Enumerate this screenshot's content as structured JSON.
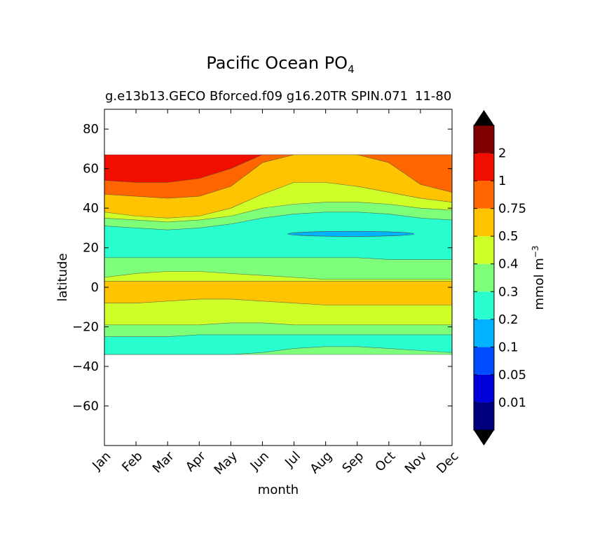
{
  "chart_data": {
    "type": "contour",
    "title_main": "Pacific Ocean PO",
    "title_sub": "4",
    "subtitle": "g.e13b13.GECO Bforced.f09 g16.20TR SPIN.071",
    "years": "11-80",
    "xlabel": "month",
    "ylabel": "latitude",
    "months": [
      "Jan",
      "Feb",
      "Mar",
      "Apr",
      "May",
      "Jun",
      "Jul",
      "Aug",
      "Sep",
      "Oct",
      "Nov",
      "Dec"
    ],
    "xlim": [
      0,
      11
    ],
    "ylim": [
      -80,
      90
    ],
    "yticks": [
      80,
      60,
      40,
      20,
      0,
      -20,
      -40,
      -60
    ],
    "ytick_labels": [
      "80",
      "60",
      "40",
      "20",
      "0",
      "−20",
      "−40",
      "−60"
    ],
    "data_lat_range": [
      -34,
      67
    ],
    "colorbar": {
      "label": "mmol m",
      "label_sup": "−3",
      "levels": [
        "0.01",
        "0.05",
        "0.1",
        "0.2",
        "0.3",
        "0.4",
        "0.5",
        "0.75",
        "1",
        "2"
      ],
      "colors": [
        "#00007f",
        "#0000d9",
        "#004dff",
        "#00b2ff",
        "#29ffce",
        "#7dff7a",
        "#ceff29",
        "#ffc400",
        "#ff6600",
        "#f00e00",
        "#7f0000"
      ]
    },
    "bands": [
      {
        "name": "band-red-top",
        "value": "1-2",
        "color": "#f00e00",
        "top": [
          67,
          67,
          67,
          67,
          67,
          67,
          67,
          67,
          67,
          67,
          67,
          67
        ],
        "bottom": [
          54,
          53,
          53,
          55,
          60,
          67,
          67,
          67,
          67,
          67,
          67,
          67
        ]
      },
      {
        "name": "band-orange-north",
        "value": "0.75-1",
        "color": "#ff6600",
        "top": [
          54,
          53,
          53,
          55,
          60,
          67,
          67,
          67,
          67,
          67,
          67,
          67
        ],
        "bottom": [
          47,
          46,
          45,
          46,
          51,
          63,
          67,
          67,
          67,
          63,
          52,
          48
        ]
      },
      {
        "name": "band-gold-north",
        "value": "0.5-0.75",
        "color": "#ffc400",
        "top": [
          47,
          46,
          45,
          46,
          51,
          63,
          67,
          67,
          67,
          63,
          52,
          48
        ],
        "bottom": [
          38,
          36,
          35,
          36,
          40,
          47,
          53,
          53,
          51,
          48,
          45,
          43
        ]
      },
      {
        "name": "band-yellow-north",
        "value": "0.4-0.5",
        "color": "#ceff29",
        "top": [
          38,
          36,
          35,
          36,
          40,
          47,
          53,
          53,
          51,
          48,
          45,
          43
        ],
        "bottom": [
          35,
          34,
          33,
          34,
          36,
          40,
          42,
          43,
          43,
          42,
          40,
          39
        ]
      },
      {
        "name": "band-green-north",
        "value": "0.3-0.4",
        "color": "#7dff7a",
        "top": [
          35,
          34,
          33,
          34,
          36,
          40,
          42,
          43,
          43,
          42,
          40,
          39
        ],
        "bottom": [
          31,
          30,
          29,
          30,
          32,
          35,
          37,
          38,
          38,
          37,
          35,
          34
        ]
      },
      {
        "name": "band-cyan-mid",
        "value": "0.2-0.3",
        "color": "#29ffce",
        "top": [
          31,
          30,
          29,
          30,
          32,
          35,
          37,
          38,
          38,
          37,
          35,
          34
        ],
        "bottom": [
          15,
          15,
          15,
          15,
          15,
          15,
          15,
          15,
          15,
          14,
          14,
          14
        ]
      },
      {
        "name": "band-green-eq",
        "value": "0.3-0.4",
        "color": "#7dff7a",
        "top": [
          15,
          15,
          15,
          15,
          15,
          15,
          15,
          15,
          15,
          14,
          14,
          14
        ],
        "bottom": [
          5,
          7,
          8,
          8,
          7,
          6,
          5,
          4,
          4,
          4,
          4,
          4
        ]
      },
      {
        "name": "band-yellow-eq",
        "value": "0.4-0.5",
        "color": "#ceff29",
        "top": [
          5,
          7,
          8,
          8,
          7,
          6,
          5,
          4,
          4,
          4,
          4,
          4
        ],
        "bottom": [
          3,
          3,
          3,
          3,
          3,
          3,
          3,
          3,
          3,
          3,
          3,
          3
        ]
      },
      {
        "name": "band-gold-eq",
        "value": "0.5-0.75",
        "color": "#ffc400",
        "top": [
          3,
          3,
          3,
          3,
          3,
          3,
          3,
          3,
          3,
          3,
          3,
          3
        ],
        "bottom": [
          -8,
          -8,
          -7,
          -6,
          -6,
          -7,
          -8,
          -9,
          -9,
          -9,
          -9,
          -9
        ]
      },
      {
        "name": "band-yellow-south",
        "value": "0.4-0.5",
        "color": "#ceff29",
        "top": [
          -8,
          -8,
          -7,
          -6,
          -6,
          -7,
          -8,
          -9,
          -9,
          -9,
          -9,
          -9
        ],
        "bottom": [
          -19,
          -19,
          -19,
          -19,
          -18,
          -18,
          -19,
          -19,
          -19,
          -19,
          -19,
          -19
        ]
      },
      {
        "name": "band-green-south",
        "value": "0.3-0.4",
        "color": "#7dff7a",
        "top": [
          -19,
          -19,
          -19,
          -19,
          -18,
          -18,
          -19,
          -19,
          -19,
          -19,
          -19,
          -19
        ],
        "bottom": [
          -25,
          -25,
          -25,
          -24,
          -24,
          -24,
          -24,
          -24,
          -24,
          -24,
          -24,
          -24
        ]
      },
      {
        "name": "band-cyan-south",
        "value": "0.2-0.3",
        "color": "#29ffce",
        "top": [
          -25,
          -25,
          -25,
          -24,
          -24,
          -24,
          -24,
          -24,
          -24,
          -24,
          -24,
          -24
        ],
        "bottom": [
          -34,
          -34,
          -34,
          -34,
          -34,
          -33,
          -31,
          -30,
          -30,
          -31,
          -32,
          -33
        ]
      },
      {
        "name": "band-green-far-south",
        "value": "0.3-0.4",
        "color": "#7dff7a",
        "top": [
          -34,
          -34,
          -34,
          -34,
          -34,
          -33,
          -31,
          -30,
          -30,
          -31,
          -32,
          -33
        ],
        "bottom": [
          -34,
          -34,
          -34,
          -34,
          -34,
          -34,
          -34,
          -34,
          -34,
          -34,
          -34,
          -34
        ]
      }
    ],
    "blob": {
      "name": "low-po4-blob",
      "value": "0.1-0.2",
      "color": "#00b2ff",
      "x_range": [
        5.8,
        9.8
      ],
      "lat": 27,
      "half_height": 1.3
    }
  }
}
